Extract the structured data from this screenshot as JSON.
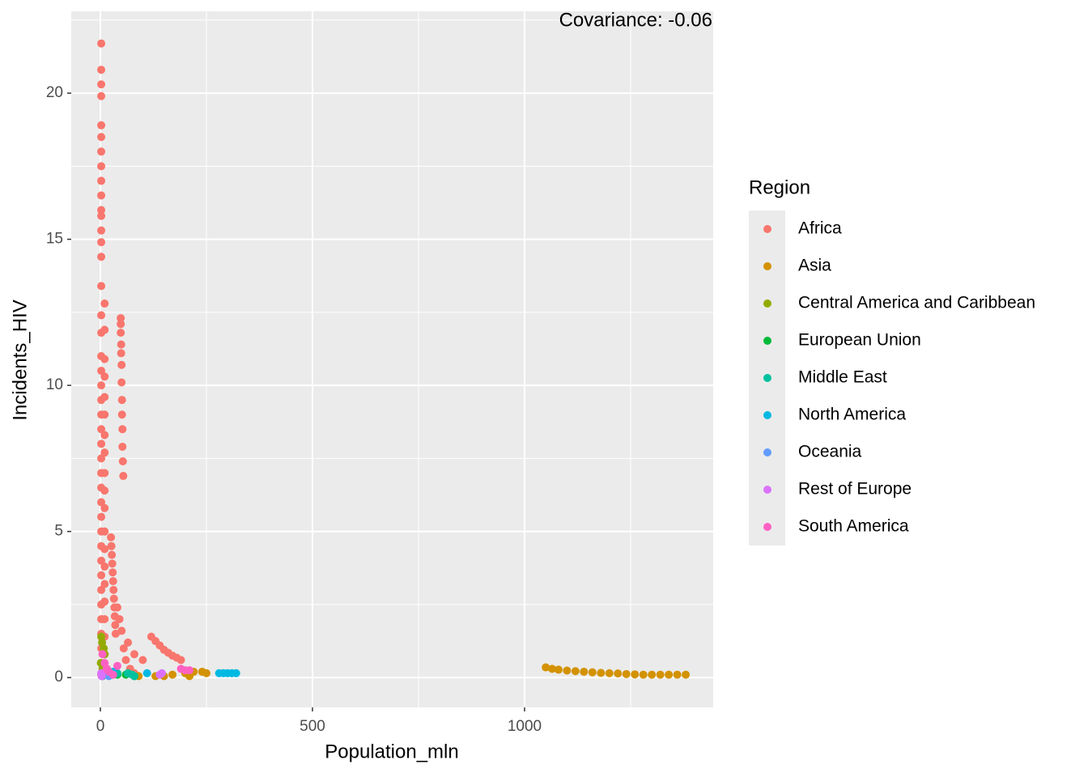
{
  "chart_data": {
    "type": "scatter",
    "annotation": "Covariance: -0.06",
    "x_label": "Population_mln",
    "y_label": "Incidents_HIV",
    "legend_title": "Region",
    "legend": "right",
    "grid": true,
    "xlim": [
      -68.7,
      1444.7
    ],
    "ylim": [
      -1.02,
      22.8
    ],
    "xticks": [
      0,
      500,
      1000
    ],
    "yticks": [
      0,
      5,
      10,
      15,
      20
    ],
    "x_minor_ticks": [
      250,
      750,
      1250
    ],
    "y_minor_ticks": [
      2.5,
      7.5,
      12.5,
      17.5,
      22.5
    ],
    "series": [
      {
        "name": "Africa",
        "color": "#F8766D",
        "x": [
          2,
          2,
          2,
          2,
          2,
          2,
          2,
          2,
          2,
          2,
          2,
          2,
          2,
          2,
          2,
          2,
          2,
          2,
          2,
          2,
          2,
          2,
          2,
          2,
          2,
          2,
          2,
          2,
          2,
          2,
          2,
          2,
          2,
          2,
          2,
          2,
          2,
          2,
          2,
          2,
          2,
          10,
          10,
          10,
          10,
          10,
          10,
          10,
          10,
          10,
          10,
          10,
          10,
          10,
          10,
          10,
          10,
          10,
          10,
          10,
          10,
          48,
          48,
          48,
          49,
          49,
          50,
          50,
          51,
          51,
          52,
          52,
          53,
          54,
          25,
          26,
          27,
          28,
          29,
          30,
          31,
          32,
          33,
          34,
          35,
          36,
          65,
          80,
          100,
          120,
          130,
          140,
          150,
          160,
          170,
          180,
          190,
          40,
          45,
          50,
          55,
          60,
          70,
          80
        ],
        "y": [
          21.7,
          20.8,
          20.3,
          19.9,
          18.9,
          18.5,
          18.0,
          17.5,
          17.0,
          16.5,
          16.0,
          15.8,
          15.3,
          14.9,
          14.4,
          13.4,
          12.4,
          11.8,
          11.0,
          10.5,
          10.0,
          9.5,
          9.0,
          8.5,
          8.0,
          7.5,
          7.0,
          6.5,
          6.0,
          5.5,
          5.0,
          4.5,
          4.0,
          3.5,
          3.0,
          2.5,
          2.0,
          1.5,
          1.0,
          0.5,
          0.1,
          12.8,
          11.9,
          10.9,
          10.3,
          9.6,
          9.0,
          8.3,
          7.7,
          7.0,
          6.4,
          5.8,
          5.0,
          4.4,
          3.8,
          3.2,
          2.6,
          2.0,
          1.4,
          0.8,
          0.3,
          12.3,
          12.1,
          11.8,
          11.4,
          11.1,
          10.7,
          10.1,
          9.5,
          9.0,
          8.5,
          7.9,
          7.4,
          6.9,
          4.8,
          4.5,
          4.2,
          3.9,
          3.6,
          3.3,
          3.0,
          2.7,
          2.4,
          2.1,
          1.8,
          1.5,
          1.2,
          0.8,
          0.6,
          1.4,
          1.25,
          1.1,
          0.95,
          0.85,
          0.75,
          0.68,
          0.6,
          2.4,
          2.0,
          1.6,
          1.0,
          0.6,
          0.3,
          0.15
        ]
      },
      {
        "name": "Asia",
        "color": "#D39200",
        "x": [
          1050,
          1065,
          1080,
          1100,
          1120,
          1140,
          1160,
          1180,
          1200,
          1220,
          1240,
          1260,
          1280,
          1300,
          1320,
          1340,
          1360,
          1380,
          130,
          150,
          170,
          200,
          220,
          240,
          250,
          210,
          15,
          30,
          90
        ],
        "y": [
          0.35,
          0.3,
          0.27,
          0.24,
          0.22,
          0.2,
          0.18,
          0.16,
          0.15,
          0.14,
          0.12,
          0.11,
          0.1,
          0.1,
          0.1,
          0.1,
          0.1,
          0.1,
          0.05,
          0.05,
          0.1,
          0.15,
          0.2,
          0.2,
          0.15,
          0.05,
          0.3,
          0.1,
          0.05
        ]
      },
      {
        "name": "Central America and Caribbean",
        "color": "#93AA00",
        "x": [
          2,
          4,
          8,
          10,
          1,
          5,
          3
        ],
        "y": [
          1.4,
          1.2,
          1.0,
          0.8,
          0.5,
          0.3,
          0.1
        ]
      },
      {
        "name": "European Union",
        "color": "#00BA38",
        "x": [
          10,
          40,
          60,
          80,
          5
        ],
        "y": [
          0.1,
          0.1,
          0.1,
          0.05,
          0.05
        ]
      },
      {
        "name": "Middle East",
        "color": "#00C19F",
        "x": [
          20,
          65,
          75,
          40,
          80
        ],
        "y": [
          0.1,
          0.15,
          0.1,
          0.15,
          0.05
        ]
      },
      {
        "name": "North America",
        "color": "#00B9E3",
        "x": [
          30,
          110,
          280,
          290,
          300,
          310,
          320
        ],
        "y": [
          0.2,
          0.15,
          0.15,
          0.15,
          0.15,
          0.15,
          0.15
        ]
      },
      {
        "name": "Oceania",
        "color": "#619CFF",
        "x": [
          20,
          4
        ],
        "y": [
          0.05,
          0.05
        ]
      },
      {
        "name": "Rest of Europe",
        "color": "#DB72FB",
        "x": [
          2,
          3,
          140,
          145
        ],
        "y": [
          0.15,
          0.05,
          0.1,
          0.15
        ]
      },
      {
        "name": "South America",
        "color": "#FF61C3",
        "x": [
          5,
          10,
          15,
          20,
          40,
          190,
          200,
          210,
          30
        ],
        "y": [
          0.8,
          0.5,
          0.3,
          0.2,
          0.4,
          0.3,
          0.25,
          0.25,
          0.1
        ]
      }
    ]
  }
}
